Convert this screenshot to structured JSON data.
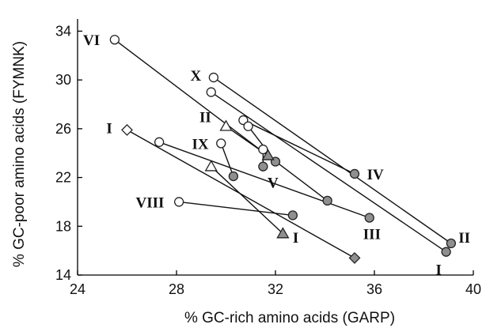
{
  "chart_data": {
    "type": "scatter",
    "xlabel": "% GC-rich amino acids (GARP)",
    "ylabel": "% GC-poor amino acids (FYMNK)",
    "xlim": [
      24,
      40
    ],
    "ylim": [
      14,
      35
    ],
    "x_ticks": [
      24,
      28,
      32,
      36,
      40
    ],
    "y_ticks": [
      14,
      18,
      22,
      26,
      30,
      34
    ],
    "grid": false,
    "legend": "none",
    "colors": {
      "open": "#ffffff",
      "filled": "#8f8f8f",
      "stroke": "#222222"
    },
    "pairs": [
      {
        "marker": "circle",
        "start": [
          25.5,
          33.3
        ],
        "end": [
          34.1,
          20.1
        ]
      },
      {
        "marker": "circle",
        "start": [
          29.5,
          30.2
        ],
        "end": [
          39.1,
          16.6
        ]
      },
      {
        "marker": "circle",
        "start": [
          29.4,
          29.0
        ],
        "end": [
          38.9,
          15.9
        ]
      },
      {
        "marker": "circle",
        "start": [
          30.7,
          26.7
        ],
        "end": [
          35.2,
          22.3
        ]
      },
      {
        "marker": "circle",
        "start": [
          30.9,
          26.2
        ],
        "end": [
          32.0,
          23.3
        ]
      },
      {
        "marker": "circle",
        "start": [
          31.5,
          24.3
        ],
        "end": [
          31.5,
          22.9
        ]
      },
      {
        "marker": "circle",
        "start": [
          29.8,
          24.8
        ],
        "end": [
          30.3,
          22.1
        ]
      },
      {
        "marker": "circle",
        "start": [
          27.3,
          24.9
        ],
        "end": [
          35.8,
          18.7
        ]
      },
      {
        "marker": "circle",
        "start": [
          28.1,
          20.0
        ],
        "end": [
          32.7,
          18.9
        ]
      },
      {
        "marker": "diamond",
        "start": [
          26.0,
          25.9
        ],
        "end": [
          35.2,
          15.4
        ]
      },
      {
        "marker": "triangle",
        "start": [
          30.0,
          26.2
        ],
        "end": [
          31.7,
          23.8
        ]
      },
      {
        "marker": "triangle",
        "start": [
          29.4,
          22.9
        ],
        "end": [
          32.3,
          17.4
        ]
      }
    ],
    "annotations": [
      {
        "text": "VI",
        "x": 24.9,
        "y": 33.3,
        "anchor": "end"
      },
      {
        "text": "X",
        "x": 29.0,
        "y": 30.4,
        "anchor": "end"
      },
      {
        "text": "II",
        "x": 29.4,
        "y": 27.0,
        "anchor": "end"
      },
      {
        "text": "I",
        "x": 25.4,
        "y": 26.1,
        "anchor": "end"
      },
      {
        "text": "IX",
        "x": 29.3,
        "y": 24.8,
        "anchor": "end"
      },
      {
        "text": "V",
        "x": 31.9,
        "y": 21.6,
        "anchor": "middle"
      },
      {
        "text": "VIII",
        "x": 27.5,
        "y": 20.0,
        "anchor": "end"
      },
      {
        "text": "IV",
        "x": 35.7,
        "y": 22.3,
        "anchor": "start"
      },
      {
        "text": "III",
        "x": 35.9,
        "y": 17.4,
        "anchor": "middle"
      },
      {
        "text": "I",
        "x": 32.7,
        "y": 17.1,
        "anchor": "start"
      },
      {
        "text": "II",
        "x": 39.4,
        "y": 17.1,
        "anchor": "start"
      },
      {
        "text": "I",
        "x": 38.6,
        "y": 14.5,
        "anchor": "middle"
      }
    ]
  }
}
